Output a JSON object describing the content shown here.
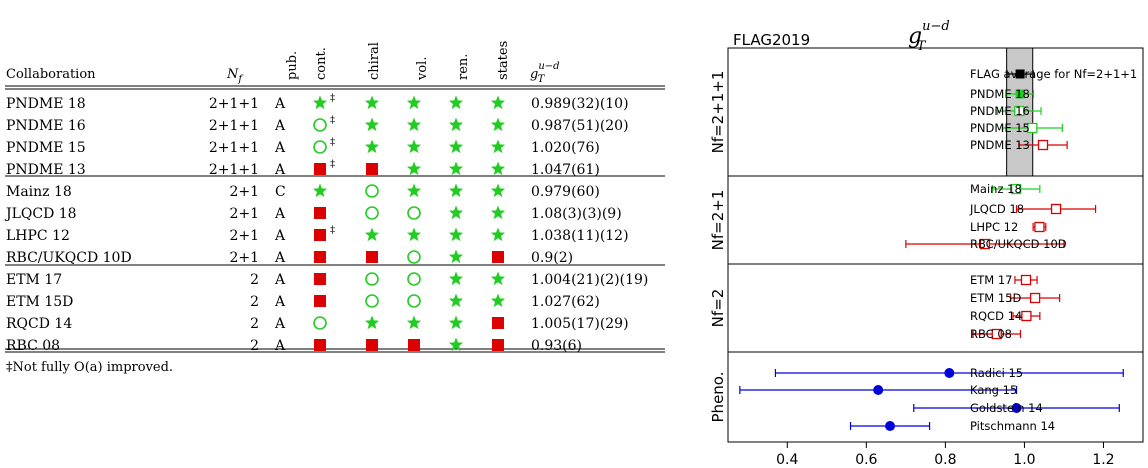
{
  "table": {
    "headers": {
      "collaboration": "Collaboration",
      "nf_sym": "N",
      "nf_sub": "f",
      "pub": "pub.",
      "cont": "cont.",
      "chiral": "chiral",
      "vol": "vol.",
      "ren": "ren.",
      "states": "states",
      "g_sym": "g",
      "g_sup": "u−d",
      "g_sub": "T"
    },
    "rows": [
      {
        "collab": "PNDME 18",
        "nf": "2+1+1",
        "pub": "A",
        "cont": "star",
        "cont_dagger": true,
        "chiral": "star",
        "vol": "star",
        "ren": "star",
        "states": "star",
        "value": "0.989(32)(10)"
      },
      {
        "collab": "PNDME 16",
        "nf": "2+1+1",
        "pub": "A",
        "cont": "circle",
        "cont_dagger": true,
        "chiral": "star",
        "vol": "star",
        "ren": "star",
        "states": "star",
        "value": "0.987(51)(20)"
      },
      {
        "collab": "PNDME 15",
        "nf": "2+1+1",
        "pub": "A",
        "cont": "circle",
        "cont_dagger": true,
        "chiral": "star",
        "vol": "star",
        "ren": "star",
        "states": "star",
        "value": "1.020(76)"
      },
      {
        "collab": "PNDME 13",
        "nf": "2+1+1",
        "pub": "A",
        "cont": "square",
        "cont_dagger": true,
        "chiral": "square",
        "vol": "star",
        "ren": "star",
        "states": "star",
        "value": "1.047(61)"
      },
      {
        "collab": "Mainz 18",
        "nf": "2+1",
        "pub": "C",
        "cont": "star",
        "cont_dagger": false,
        "chiral": "circle",
        "vol": "star",
        "ren": "star",
        "states": "star",
        "value": "0.979(60)"
      },
      {
        "collab": "JLQCD 18",
        "nf": "2+1",
        "pub": "A",
        "cont": "square",
        "cont_dagger": false,
        "chiral": "circle",
        "vol": "circle",
        "ren": "star",
        "states": "star",
        "value": "1.08(3)(3)(9)"
      },
      {
        "collab": "LHPC 12",
        "nf": "2+1",
        "pub": "A",
        "cont": "square",
        "cont_dagger": true,
        "chiral": "star",
        "vol": "star",
        "ren": "star",
        "states": "star",
        "value": "1.038(11)(12)"
      },
      {
        "collab": "RBC/UKQCD 10D",
        "nf": "2+1",
        "pub": "A",
        "cont": "square",
        "cont_dagger": false,
        "chiral": "square",
        "vol": "circle",
        "ren": "star",
        "states": "square",
        "value": "0.9(2)"
      },
      {
        "collab": "ETM 17",
        "nf": "2",
        "pub": "A",
        "cont": "square",
        "cont_dagger": false,
        "chiral": "circle",
        "vol": "circle",
        "ren": "star",
        "states": "star",
        "value": "1.004(21)(2)(19)"
      },
      {
        "collab": "ETM 15D",
        "nf": "2",
        "pub": "A",
        "cont": "square",
        "cont_dagger": false,
        "chiral": "circle",
        "vol": "circle",
        "ren": "star",
        "states": "star",
        "value": "1.027(62)"
      },
      {
        "collab": "RQCD 14",
        "nf": "2",
        "pub": "A",
        "cont": "circle",
        "cont_dagger": false,
        "chiral": "star",
        "vol": "star",
        "ren": "star",
        "states": "square",
        "value": "1.005(17)(29)"
      },
      {
        "collab": "RBC 08",
        "nf": "2",
        "pub": "A",
        "cont": "square",
        "cont_dagger": false,
        "chiral": "square",
        "vol": "square",
        "ren": "star",
        "states": "square",
        "value": "0.93(6)"
      }
    ],
    "footnote": "‡Not fully O(a) improved."
  },
  "chart_data": {
    "type": "scatter",
    "title_sym": "g",
    "title_sup": "u−d",
    "title_sub": "T",
    "watermark": "FLAG2019",
    "xlim": [
      0.25,
      1.3
    ],
    "xticks": [
      "0.4",
      "0.6",
      "0.8",
      "1.0",
      "1.2"
    ],
    "average_band": [
      0.955,
      1.021
    ],
    "panels": [
      {
        "label": "Nf=2+1+1",
        "points": [
          {
            "name": "FLAG average for Nf=2+1+1",
            "value": 0.989,
            "lo": 0.956,
            "hi": 1.022,
            "style": "black-filled-square"
          },
          {
            "name": "PNDME 18",
            "value": 0.989,
            "lo": 0.955,
            "hi": 1.023,
            "style": "green-filled-square"
          },
          {
            "name": "PNDME 16",
            "value": 0.987,
            "lo": 0.932,
            "hi": 1.042,
            "style": "green-open-square"
          },
          {
            "name": "PNDME 15",
            "value": 1.02,
            "lo": 0.944,
            "hi": 1.096,
            "style": "green-open-square"
          },
          {
            "name": "PNDME 13",
            "value": 1.047,
            "lo": 0.986,
            "hi": 1.108,
            "style": "red-open-square"
          }
        ]
      },
      {
        "label": "Nf=2+1",
        "points": [
          {
            "name": "Mainz 18",
            "value": 0.979,
            "lo": 0.919,
            "hi": 1.039,
            "style": "green-open-square"
          },
          {
            "name": "JLQCD 18",
            "value": 1.08,
            "lo": 0.98,
            "hi": 1.18,
            "style": "red-open-square"
          },
          {
            "name": "LHPC 12",
            "value": 1.038,
            "lo": 1.022,
            "hi": 1.054,
            "style": "red-open-square"
          },
          {
            "name": "RBC/UKQCD 10D",
            "value": 0.9,
            "lo": 0.7,
            "hi": 1.1,
            "style": "red-open-square"
          }
        ]
      },
      {
        "label": "Nf=2",
        "points": [
          {
            "name": "ETM 17",
            "value": 1.004,
            "lo": 0.976,
            "hi": 1.032,
            "style": "red-open-square"
          },
          {
            "name": "ETM 15D",
            "value": 1.027,
            "lo": 0.965,
            "hi": 1.089,
            "style": "red-open-square"
          },
          {
            "name": "RQCD 14",
            "value": 1.005,
            "lo": 0.971,
            "hi": 1.039,
            "style": "red-open-square"
          },
          {
            "name": "RBC 08",
            "value": 0.93,
            "lo": 0.87,
            "hi": 0.99,
            "style": "red-open-square"
          }
        ]
      },
      {
        "label": "Pheno.",
        "points": [
          {
            "name": "Radici 15",
            "value": 0.81,
            "lo": 0.37,
            "hi": 1.25,
            "style": "blue-filled-circle"
          },
          {
            "name": "Kang 15",
            "value": 0.63,
            "lo": 0.28,
            "hi": 0.98,
            "style": "blue-filled-circle"
          },
          {
            "name": "Goldstein 14",
            "value": 0.98,
            "lo": 0.72,
            "hi": 1.24,
            "style": "blue-filled-circle"
          },
          {
            "name": "Pitschmann 14",
            "value": 0.66,
            "lo": 0.56,
            "hi": 0.76,
            "style": "blue-filled-circle"
          }
        ]
      }
    ]
  },
  "colors": {
    "green": "#22cc22",
    "red": "#dd0000",
    "blue": "#0000dd",
    "black": "#000000",
    "band": "#c8c8c8",
    "watermark": "#ff0000"
  }
}
